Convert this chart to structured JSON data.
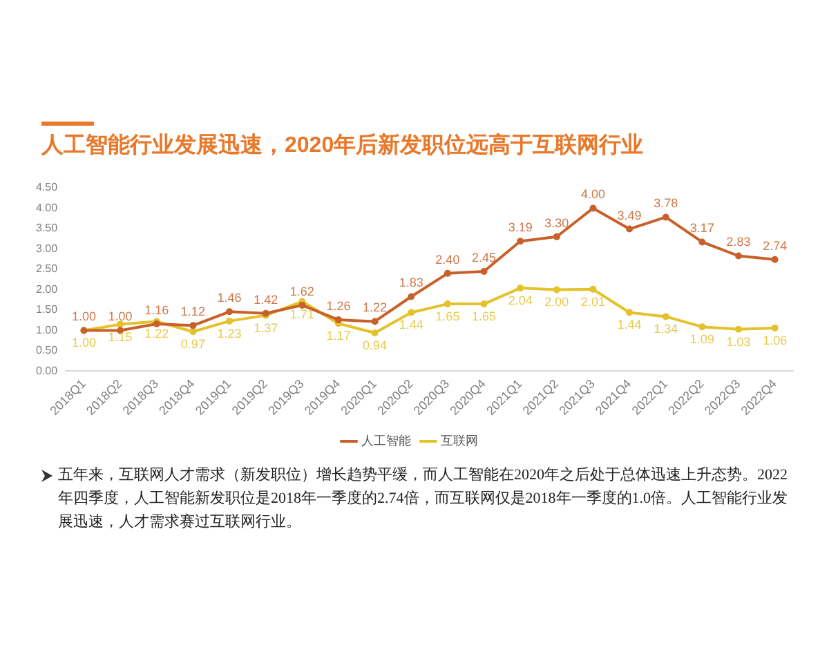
{
  "chart_data": {
    "type": "line",
    "title": "人工智能行业发展迅速，2020年后新发职位远高于互联网行业",
    "categories": [
      "2018Q1",
      "2018Q2",
      "2018Q3",
      "2018Q4",
      "2019Q1",
      "2019Q2",
      "2019Q3",
      "2019Q4",
      "2020Q1",
      "2020Q2",
      "2020Q3",
      "2020Q4",
      "2021Q1",
      "2021Q2",
      "2021Q3",
      "2021Q4",
      "2022Q1",
      "2022Q2",
      "2022Q3",
      "2022Q4"
    ],
    "series": [
      {
        "name": "人工智能",
        "color": "#c8602a",
        "values": [
          1.0,
          1.0,
          1.16,
          1.12,
          1.46,
          1.42,
          1.62,
          1.26,
          1.22,
          1.83,
          2.4,
          2.45,
          3.19,
          3.3,
          4.0,
          3.49,
          3.78,
          3.17,
          2.83,
          2.74
        ],
        "value_labels": [
          "1.00",
          "1.00",
          "1.16",
          "1.12",
          "1.46",
          "1.42",
          "1.62",
          "1.26",
          "1.22",
          "1.83",
          "2.40",
          "2.45",
          "3.19",
          "3.30",
          "4.00",
          "3.49",
          "3.78",
          "3.17",
          "2.83",
          "2.74"
        ]
      },
      {
        "name": "互联网",
        "color": "#e3c22c",
        "values": [
          1.0,
          1.15,
          1.22,
          0.97,
          1.23,
          1.37,
          1.71,
          1.17,
          0.94,
          1.44,
          1.65,
          1.65,
          2.04,
          2.0,
          2.01,
          1.44,
          1.34,
          1.09,
          1.03,
          1.06
        ],
        "value_labels": [
          "1.00",
          "1.15",
          "1.22",
          "0.97",
          "1.23",
          "1.37",
          "1.71",
          "1.17",
          "0.94",
          "1.44",
          "1.65",
          "1.65",
          "2.04",
          "2.00",
          "2.01",
          "1.44",
          "1.34",
          "1.09",
          "1.03",
          "1.06"
        ]
      }
    ],
    "ylim": [
      0,
      4.5
    ],
    "yticks": [
      {
        "value": 0,
        "label": "0.00"
      },
      {
        "value": 0.5,
        "label": "0.50"
      },
      {
        "value": 1,
        "label": "1.00"
      },
      {
        "value": 1.5,
        "label": "1.50"
      },
      {
        "value": 2,
        "label": "2.00"
      },
      {
        "value": 2.5,
        "label": "2.50"
      },
      {
        "value": 3,
        "label": "3.00"
      },
      {
        "value": 3.5,
        "label": "3.50"
      },
      {
        "value": 4,
        "label": "4.00"
      },
      {
        "value": 4.5,
        "label": "4.50"
      }
    ],
    "grid": false,
    "legend": "bottom",
    "marker": "circle",
    "line_style": "solid",
    "annotations": [
      "五年来，互联网人才需求（新发职位）增长趋势平缓，而人工智能在2020年之后处于总体迅速上升态势。2022年四季度，人工智能新发职位是2018年一季度的2.74倍，而互联网仅是2018年一季度的1.0倍。人工智能行业发展迅速，人才需求赛过互联网行业。"
    ]
  }
}
